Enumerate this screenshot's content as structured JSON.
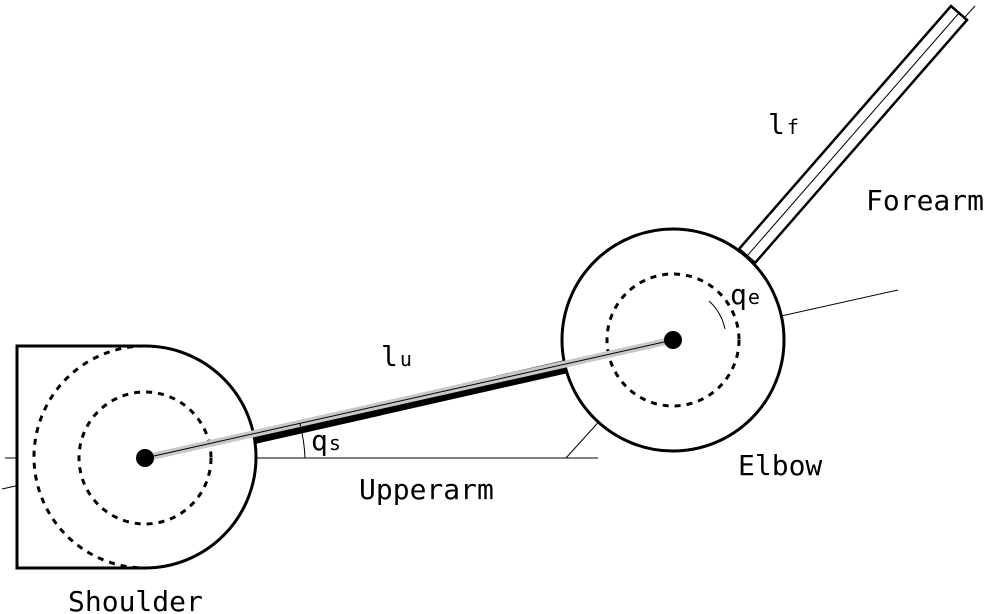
{
  "labels": {
    "forearm": "Forearm",
    "elbow": "Elbow",
    "upperarm": "Upperarm",
    "shoulder": "Shoulder",
    "lu_main": "l",
    "lu_sub": "u",
    "lf_main": "l",
    "lf_sub": "f",
    "qs_main": "q",
    "qs_sub": "s",
    "qe_main": "q",
    "qe_sub": "e"
  }
}
